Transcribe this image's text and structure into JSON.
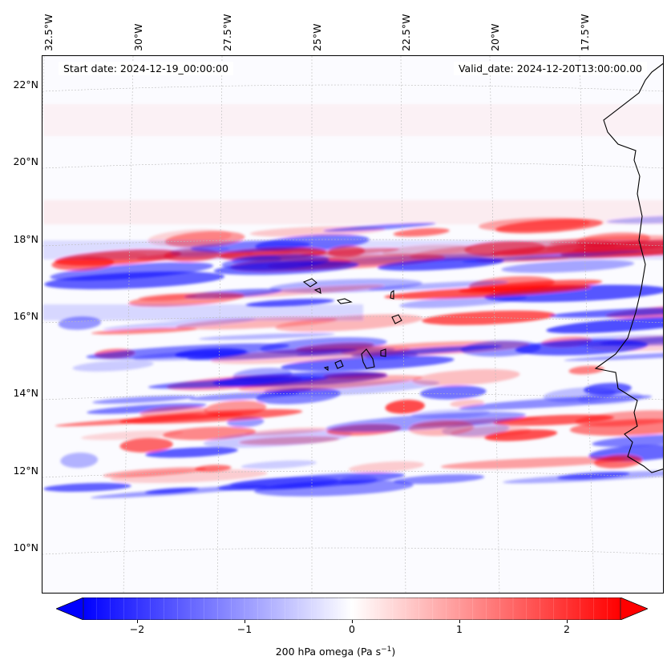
{
  "map": {
    "start_date_text": "Start date: 2024-12-19_00:00:00",
    "valid_date_text": "Valid_date: 2024-12-20T13:00:00.00",
    "lon_labels": [
      "32.5°W",
      "30°W",
      "27.5°W",
      "25°W",
      "22.5°W",
      "20°W",
      "17.5°W"
    ],
    "lat_labels": [
      "22°N",
      "20°N",
      "18°N",
      "16°N",
      "14°N",
      "12°N",
      "10°N"
    ],
    "field_variable": "200 hPa omega",
    "colormap": "bwr",
    "colors": {
      "negative": "#0000ff",
      "zero": "#ffffff",
      "positive": "#ff0000",
      "coastline": "#000000"
    }
  },
  "colorbar": {
    "ticks": [
      "−2",
      "−1",
      "0",
      "1",
      "2"
    ],
    "range": [
      -2.5,
      2.5
    ],
    "extend": "both",
    "label_text": "200 hPa omega (Pa s",
    "label_superscript": "−1",
    "label_suffix": ")"
  }
}
